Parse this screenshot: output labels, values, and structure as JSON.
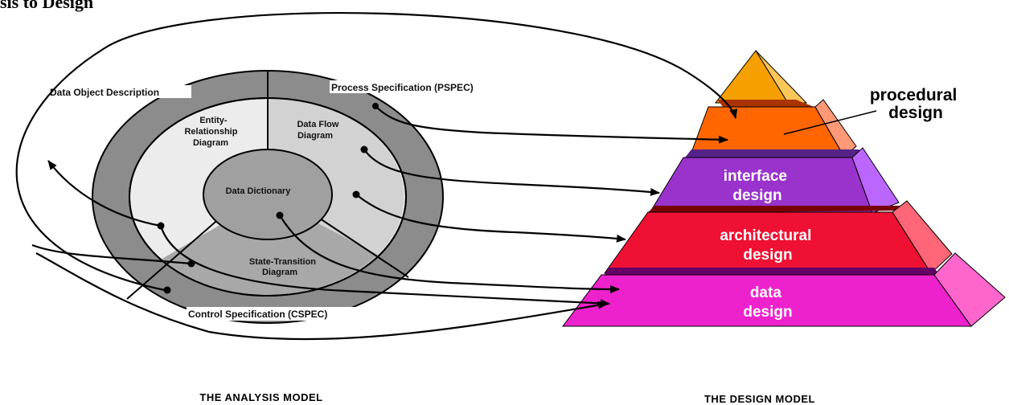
{
  "top_text": "sis to Design",
  "analysis_model": {
    "caption": "THE ANALYSIS MODEL",
    "outer_ring_top": "Data Object Description",
    "outer_ring_right": "Process Specification (PSPEC)",
    "outer_ring_bottom": "Control Specification (CSPEC)",
    "sector_erd": [
      "Entity-",
      "Relationship",
      "Diagram"
    ],
    "sector_dfd": [
      "Data Flow",
      "Diagram"
    ],
    "sector_std": [
      "State-Transition",
      "Diagram"
    ],
    "core": "Data Dictionary"
  },
  "design_model": {
    "caption": "THE DESIGN MODEL",
    "procedural": [
      "procedural",
      "design"
    ],
    "interface": [
      "interface",
      "design"
    ],
    "architectural": [
      "architectural",
      "design"
    ],
    "data": [
      "data",
      "design"
    ]
  },
  "colors": {
    "outer_ring": "#8c8c8c",
    "middle_ring": "#ececec",
    "sector_dfd": "#d2d2d2",
    "sector_std": "#a8a8a8",
    "core": "#a0a0a0",
    "apex": "#f5a000",
    "procedural": "#ff6600",
    "interface": "#9933cc",
    "architectural": "#ee1133",
    "data": "#ee22cc"
  }
}
